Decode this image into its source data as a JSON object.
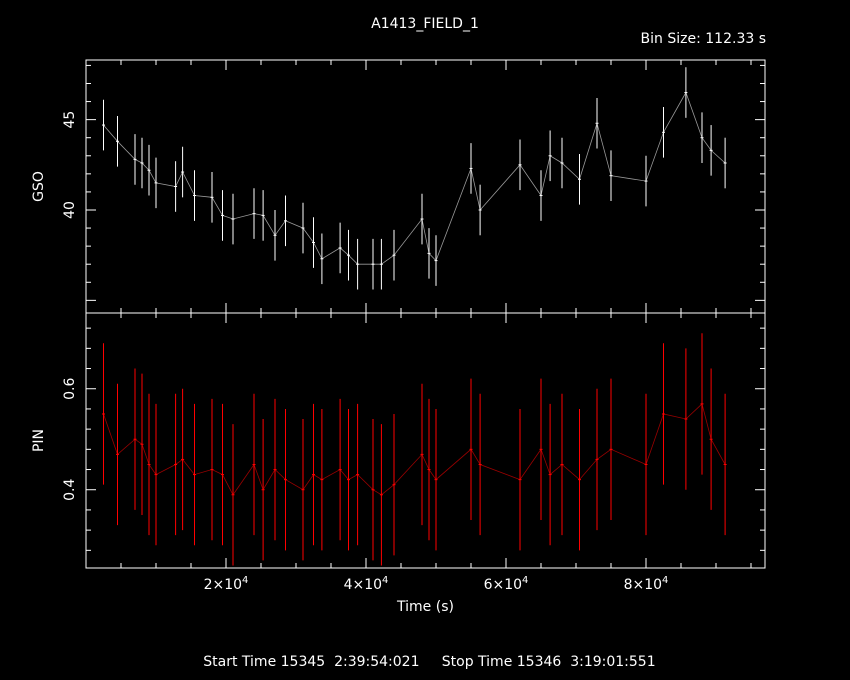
{
  "title": "A1413_FIELD_1",
  "bin_size": "Bin Size: 112.33 s",
  "footer": {
    "start_label": "Start Time",
    "start_value": "15345  2:39:54:021",
    "stop_label": "Stop Time",
    "stop_value": "15346  3:19:01:551"
  },
  "colors": {
    "background": "#000000",
    "axes": "#ffffff",
    "gso": "#ffffff",
    "pin": "#ff0000"
  },
  "chart_data": [
    {
      "type": "line",
      "panel": "top",
      "ylabel": "GSO",
      "xlim": [
        0,
        97000
      ],
      "ylim": [
        34.3,
        48.3
      ],
      "ytick_labels": [
        "40",
        "45"
      ],
      "series": [
        {
          "color": "#ffffff",
          "x": [
            2500,
            4500,
            7000,
            8000,
            9000,
            10000,
            12800,
            13800,
            15500,
            18000,
            19500,
            21000,
            24000,
            25300,
            27000,
            28500,
            31000,
            32500,
            33700,
            36300,
            37500,
            38800,
            41000,
            42200,
            44000,
            48000,
            49000,
            50000,
            55000,
            56300,
            62000,
            65000,
            66300,
            68000,
            70500,
            73000,
            75000,
            80000,
            82500,
            85700,
            88000,
            89300,
            91300
          ],
          "y": [
            44.7,
            43.8,
            42.8,
            42.6,
            42.2,
            41.5,
            41.3,
            42.1,
            40.8,
            40.7,
            39.7,
            39.5,
            39.8,
            39.7,
            38.6,
            39.4,
            39.0,
            38.2,
            37.3,
            37.9,
            37.5,
            37.0,
            37.0,
            37.0,
            37.5,
            39.5,
            37.6,
            37.2,
            42.3,
            40.0,
            42.5,
            40.8,
            43.0,
            42.6,
            41.7,
            44.8,
            41.9,
            41.6,
            44.3,
            46.5,
            44.0,
            43.3,
            42.6
          ]
        }
      ]
    },
    {
      "type": "line",
      "panel": "bottom",
      "ylabel": "PIN",
      "xlabel": "Time (s)",
      "xlim": [
        0,
        97000
      ],
      "ylim": [
        0.245,
        0.75
      ],
      "ytick_labels": [
        "0.4",
        "0.6"
      ],
      "xtick_labels": [
        {
          "x": 20000,
          "mantissa": "2×10",
          "exp": "4"
        },
        {
          "x": 40000,
          "mantissa": "4×10",
          "exp": "4"
        },
        {
          "x": 60000,
          "mantissa": "6×10",
          "exp": "4"
        },
        {
          "x": 80000,
          "mantissa": "8×10",
          "exp": "4"
        }
      ],
      "series": [
        {
          "color": "#ff0000",
          "x": [
            2500,
            4500,
            7000,
            8000,
            9000,
            10000,
            12800,
            13800,
            15500,
            18000,
            19500,
            21000,
            24000,
            25300,
            27000,
            28500,
            31000,
            32500,
            33700,
            36300,
            37500,
            38800,
            41000,
            42200,
            44000,
            48000,
            49000,
            50000,
            55000,
            56300,
            62000,
            65000,
            66300,
            68000,
            70500,
            73000,
            75000,
            80000,
            82500,
            85700,
            88000,
            89300,
            91300
          ],
          "y": [
            0.55,
            0.47,
            0.5,
            0.49,
            0.45,
            0.43,
            0.45,
            0.46,
            0.43,
            0.44,
            0.43,
            0.39,
            0.45,
            0.4,
            0.44,
            0.42,
            0.4,
            0.43,
            0.42,
            0.44,
            0.42,
            0.43,
            0.4,
            0.39,
            0.41,
            0.47,
            0.44,
            0.42,
            0.48,
            0.45,
            0.42,
            0.48,
            0.43,
            0.45,
            0.42,
            0.46,
            0.48,
            0.45,
            0.55,
            0.54,
            0.57,
            0.5,
            0.45
          ]
        }
      ]
    }
  ]
}
